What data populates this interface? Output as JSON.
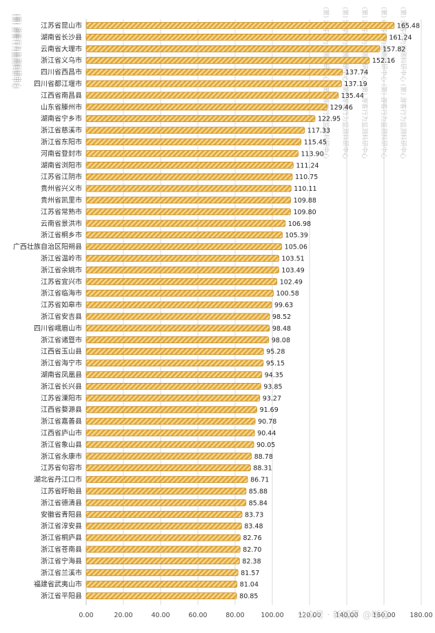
{
  "chart_data": {
    "type": "bar",
    "orientation": "horizontal",
    "categories": [
      "江苏省昆山市",
      "湖南省长沙县",
      "云南省大理市",
      "浙江省义乌市",
      "四川省西昌市",
      "四川省都江堰市",
      "江西省南昌县",
      "山东省滕州市",
      "湖南省宁乡市",
      "浙江省慈溪市",
      "浙江省东阳市",
      "河南省登封市",
      "湖南省浏阳市",
      "江苏省江阴市",
      "贵州省兴义市",
      "贵州省凯里市",
      "江苏省常熟市",
      "云南省景洪市",
      "浙江省桐乡市",
      "广西壮族自治区阳朔县",
      "浙江省温岭市",
      "浙江省余姚市",
      "江苏省宜兴市",
      "浙江省临海市",
      "江苏省如皋市",
      "浙江省安吉县",
      "四川省峨眉山市",
      "浙江省诸暨市",
      "江西省玉山县",
      "浙江省海宁市",
      "湖南省凤凰县",
      "浙江省长兴县",
      "江苏省溧阳市",
      "江西省婺源县",
      "浙江省嘉善县",
      "江西省庐山市",
      "浙江省象山县",
      "浙江省永康市",
      "江苏省句容市",
      "湖北省丹江口市",
      "江苏省盱眙县",
      "浙江省德清县",
      "安徽省青阳县",
      "浙江省淳安县",
      "浙江省桐庐县",
      "浙江省苍南县",
      "浙江省宁海县",
      "浙江省兰溪市",
      "福建省武夷山市",
      "浙江省平阳县"
    ],
    "values": [
      165.48,
      161.24,
      157.82,
      152.16,
      137.74,
      137.19,
      135.44,
      129.46,
      122.95,
      117.33,
      115.45,
      113.9,
      111.24,
      110.75,
      110.11,
      109.88,
      109.8,
      106.98,
      105.39,
      105.06,
      103.51,
      103.49,
      102.49,
      100.58,
      99.63,
      98.52,
      98.48,
      98.08,
      95.28,
      95.15,
      94.35,
      93.85,
      93.27,
      91.69,
      90.78,
      90.44,
      90.05,
      88.78,
      88.31,
      86.71,
      85.88,
      85.84,
      83.73,
      83.48,
      82.76,
      82.7,
      82.38,
      81.57,
      81.04,
      80.85
    ],
    "value_labels": [
      "165.48",
      "161.24",
      "157.82",
      "152.16",
      "137.74",
      "137.19",
      "135.44",
      "129.46",
      "122.95",
      "117.33",
      "115.45",
      "113.90",
      "111.24",
      "110.75",
      "110.11",
      "109.88",
      "109.80",
      "106.98",
      "105.39",
      "105.06",
      "103.51",
      "103.49",
      "102.49",
      "100.58",
      "99.63",
      "98.52",
      "98.48",
      "98.08",
      "95.28",
      "95.15",
      "94.35",
      "93.85",
      "93.27",
      "91.69",
      "90.78",
      "90.44",
      "90.05",
      "88.78",
      "88.31",
      "86.71",
      "85.88",
      "85.84",
      "83.73",
      "83.48",
      "82.76",
      "82.70",
      "82.38",
      "81.57",
      "81.04",
      "80.85"
    ],
    "xlim": [
      0,
      180
    ],
    "x_ticks": [
      "0.00",
      "20.00",
      "40.00",
      "60.00",
      "80.00",
      "100.00",
      "120.00",
      "140.00",
      "160.00",
      "180.00"
    ],
    "grid": true,
    "bar_color": "#E2A93B",
    "bar_stripe_color": "#F7DE9E"
  },
  "watermark_left": "(第)  游客行为监测科研中心",
  "footer_overlay": "公众号  · 新视界  @晰音"
}
